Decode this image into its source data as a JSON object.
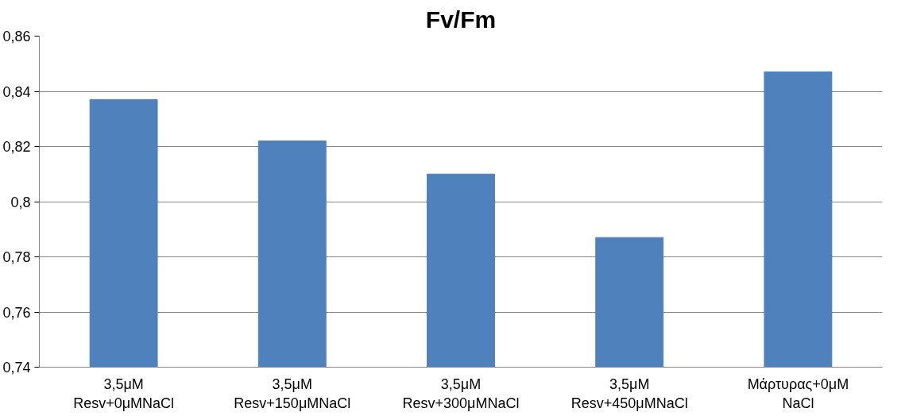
{
  "chart_data": {
    "type": "bar",
    "title": "Fv/Fm",
    "categories": [
      "3,5μM\nResv+0μMNaCl",
      "3,5μM\nResv+150μMNaCl",
      "3,5μM\nResv+300μMNaCl",
      "3,5μM\nResv+450μMNaCl",
      "Μάρτυρας+0μM\nNaCl"
    ],
    "values": [
      0.837,
      0.822,
      0.81,
      0.787,
      0.847
    ],
    "color": "#4f81bd",
    "ylim": [
      0.74,
      0.86
    ],
    "yticks": [
      {
        "value": 0.74,
        "label": "0,74"
      },
      {
        "value": 0.76,
        "label": "0,76"
      },
      {
        "value": 0.78,
        "label": "0,78"
      },
      {
        "value": 0.8,
        "label": "0,8"
      },
      {
        "value": 0.82,
        "label": "0,82"
      },
      {
        "value": 0.84,
        "label": "0,84"
      },
      {
        "value": 0.86,
        "label": "0,86"
      }
    ],
    "grid": "y"
  }
}
